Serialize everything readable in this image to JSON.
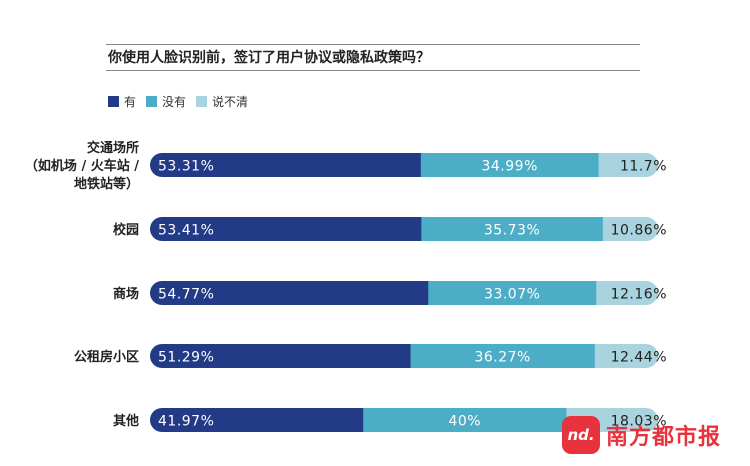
{
  "chart_data": {
    "type": "bar",
    "stacked": true,
    "orientation": "horizontal",
    "title": "你使用人脸识别前，签订了用户协议或隐私政策吗？",
    "categories": [
      [
        "交通场所",
        "（如机场 / 火车站 /",
        "地铁站等）"
      ],
      [
        "校园"
      ],
      [
        "商场"
      ],
      [
        "公租房小区"
      ],
      [
        "其他"
      ]
    ],
    "series": [
      {
        "name": "有",
        "color": "#233a86",
        "values": [
          53.31,
          53.41,
          54.77,
          51.29,
          41.97
        ],
        "labels": [
          "53.31%",
          "53.41%",
          "54.77%",
          "51.29%",
          "41.97%"
        ]
      },
      {
        "name": "没有",
        "color": "#4cadc7",
        "values": [
          34.99,
          35.73,
          33.07,
          36.27,
          40
        ],
        "labels": [
          "34.99%",
          "35.73%",
          "33.07%",
          "36.27%",
          "40%"
        ]
      },
      {
        "name": "说不清",
        "color": "#a8d3df",
        "values": [
          11.7,
          10.86,
          12.16,
          12.44,
          18.03
        ],
        "labels": [
          "11.7%",
          "10.86%",
          "12.16%",
          "12.44%",
          "18.03%"
        ]
      }
    ],
    "xlim": [
      0,
      100
    ],
    "legend_position": "top-left",
    "grid": false
  },
  "watermark": {
    "logo_text": "nd.",
    "brand": "南方都市报"
  }
}
